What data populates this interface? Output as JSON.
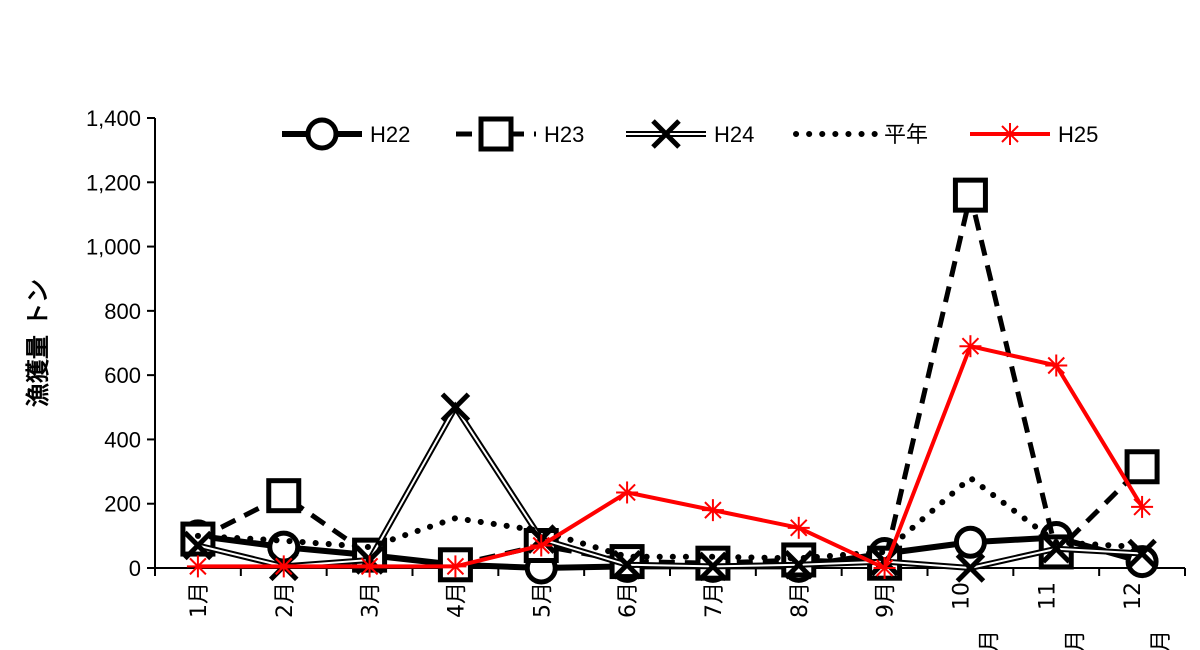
{
  "chart_data": {
    "type": "line",
    "ylabel": "漁獲量 トン",
    "xlabel": "",
    "title": "",
    "ylim": [
      0,
      1400
    ],
    "yticks": [
      0,
      200,
      400,
      600,
      800,
      1000,
      1200,
      1400
    ],
    "ytick_labels": [
      "0",
      "200",
      "400",
      "600",
      "800",
      "1,000",
      "1,200",
      "1,400"
    ],
    "categories": [
      "1月",
      "2月",
      "3月",
      "4月",
      "5月",
      "6月",
      "7月",
      "8月",
      "9月",
      "10月",
      "11月",
      "12月"
    ],
    "grid": false,
    "legend_position": "top",
    "series": [
      {
        "name": "H22",
        "color": "#000000",
        "style": "solid-thick",
        "marker": "circle",
        "values": [
          100,
          65,
          40,
          10,
          0,
          5,
          5,
          5,
          45,
          80,
          95,
          20
        ]
      },
      {
        "name": "H23",
        "color": "#000000",
        "style": "dashed",
        "marker": "square",
        "values": [
          90,
          225,
          40,
          10,
          70,
          20,
          15,
          25,
          15,
          1160,
          50,
          315
        ]
      },
      {
        "name": "H24",
        "color": "#000000",
        "style": "double",
        "marker": "x",
        "values": [
          70,
          5,
          25,
          500,
          90,
          10,
          5,
          10,
          20,
          0,
          60,
          45
        ]
      },
      {
        "name": "平年",
        "color": "#000000",
        "style": "dotted",
        "marker": "none",
        "values": [
          100,
          85,
          65,
          155,
          115,
          35,
          35,
          30,
          50,
          280,
          80,
          65
        ]
      },
      {
        "name": "H25",
        "color": "#ff0000",
        "style": "solid",
        "marker": "asterisk",
        "values": [
          5,
          5,
          5,
          5,
          70,
          235,
          180,
          125,
          0,
          690,
          630,
          190
        ]
      }
    ]
  }
}
